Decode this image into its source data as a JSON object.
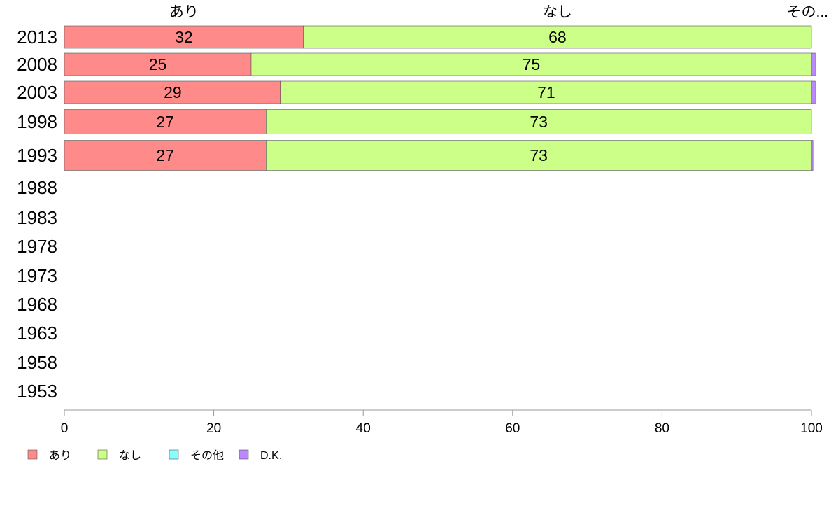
{
  "chart_data": {
    "type": "bar",
    "orientation": "horizontal",
    "stacked": true,
    "categories": [
      "2013",
      "2008",
      "2003",
      "1998",
      "1993",
      "1988",
      "1983",
      "1978",
      "1973",
      "1968",
      "1963",
      "1958",
      "1953"
    ],
    "series": [
      {
        "name": "あり",
        "color": "#ff8a8a",
        "values": [
          32,
          25,
          29,
          27,
          27,
          null,
          null,
          null,
          null,
          null,
          null,
          null,
          null
        ]
      },
      {
        "name": "なし",
        "color": "#ccff88",
        "values": [
          68,
          75,
          71,
          73,
          73,
          null,
          null,
          null,
          null,
          null,
          null,
          null,
          null
        ]
      },
      {
        "name": "その他",
        "color": "#88ffff",
        "values": [
          0,
          0,
          0,
          0,
          0,
          null,
          null,
          null,
          null,
          null,
          null,
          null,
          null
        ]
      },
      {
        "name": "D.K.",
        "color": "#bb88ff",
        "values": [
          0,
          0.5,
          0.5,
          0,
          0.2,
          null,
          null,
          null,
          null,
          null,
          null,
          null,
          null
        ]
      }
    ],
    "data_labels": [
      [
        "32",
        "68"
      ],
      [
        "25",
        "75"
      ],
      [
        "29",
        "71"
      ],
      [
        "27",
        "73"
      ],
      [
        "27",
        "73"
      ]
    ],
    "top_labels": [
      "あり",
      "なし",
      "その..."
    ],
    "xlim": [
      0,
      100
    ],
    "xticks": [
      "0",
      "20",
      "40",
      "60",
      "80",
      "100"
    ],
    "legend_position": "bottom-left",
    "grid": false
  }
}
